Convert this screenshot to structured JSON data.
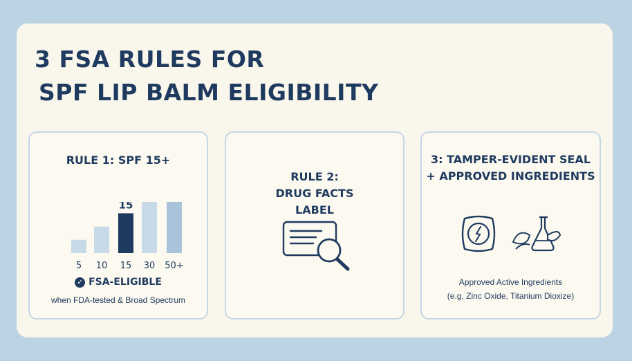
{
  "title": {
    "line1": "3 FSA RULES FOR",
    "line2": "SPF LIP BALM ELIGIBILITY"
  },
  "rule1": {
    "title": "RULE 1: SPF 15+",
    "eligible_label": "FSA-ELIGIBLE",
    "note": "when FDA-tested & Broad Spectrum"
  },
  "rule2": {
    "title_line1": "RULE 2:",
    "title_line2": "DRUG FACTS",
    "title_line3": "LABEL",
    "icon": "document-magnifier-icon"
  },
  "rule3": {
    "title_line1": "3: TAMPER-EVIDENT SEAL",
    "title_line2": "+ APPROVED INGREDIENTS",
    "icons": [
      "seal-icon",
      "leaf-flask-icon"
    ],
    "ingredients_line1": "Approved Active Ingredients",
    "ingredients_line2": "(e.g, Zinc Oxide, Titanium Dioxize)"
  },
  "colors": {
    "background": "#bcd3e3",
    "card": "#f9f7ec",
    "navy": "#1f3a5f",
    "bar_light": "#c8d9e8",
    "bar_mid": "#a9c3da",
    "bar_highlight": "#1f3a5f"
  },
  "chart_data": {
    "type": "bar",
    "categories": [
      "5",
      "10",
      "15",
      "30",
      "50+"
    ],
    "values": [
      5,
      10,
      15,
      30,
      50
    ],
    "highlight": "15",
    "highlight_label": "15",
    "title": "",
    "xlabel": "",
    "ylabel": ""
  }
}
